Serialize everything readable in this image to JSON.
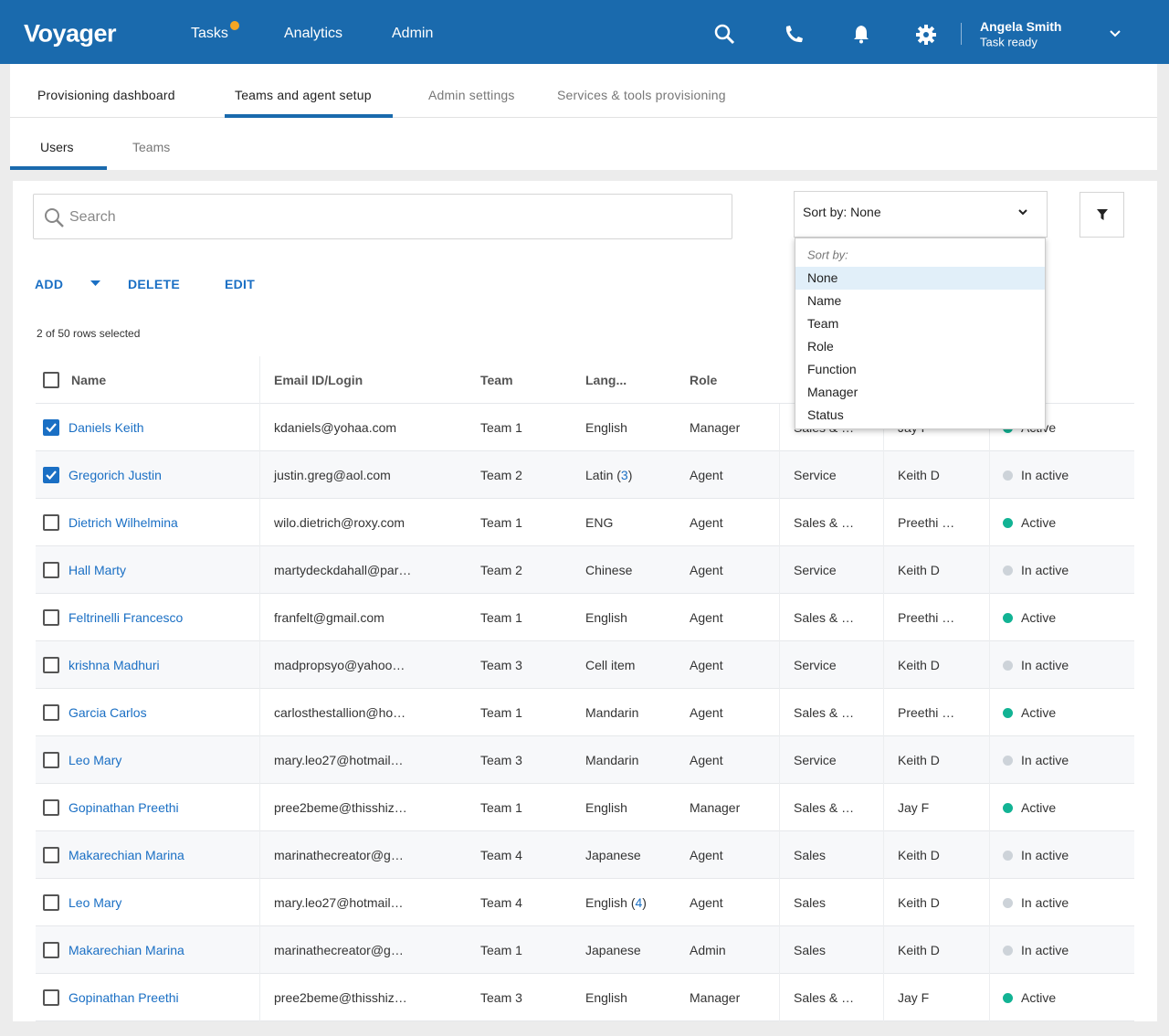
{
  "header": {
    "brand": "Voyager",
    "nav": [
      "Tasks",
      "Analytics",
      "Admin"
    ],
    "user_name": "Angela Smith",
    "user_status": "Task ready"
  },
  "tabs": {
    "items": [
      "Provisioning dashboard",
      "Teams and agent setup",
      "Admin settings",
      "Services & tools provisioning"
    ],
    "active": 1
  },
  "subtabs": {
    "items": [
      "Users",
      "Teams"
    ],
    "active": 0
  },
  "search": {
    "placeholder": "Search"
  },
  "sort": {
    "label": "Sort by: None",
    "menu_heading": "Sort by:",
    "options": [
      "None",
      "Name",
      "Team",
      "Role",
      "Function",
      "Manager",
      "Status"
    ],
    "selected": 0
  },
  "actions": [
    "ADD",
    "DELETE",
    "EDIT"
  ],
  "selection": "2 of 50 rows selected",
  "table": {
    "headers": [
      "Name",
      "Email ID/Login",
      "Team",
      "Lang...",
      "Role"
    ],
    "rows": [
      {
        "checked": true,
        "name": "Daniels Keith",
        "email": "kdaniels@yohaa.com",
        "team": "Team 1",
        "lang": "English",
        "role": "Manager",
        "function": "Sales & …",
        "manager": "Jay F",
        "status": "Active",
        "dot": "#12b394"
      },
      {
        "checked": true,
        "name": "Gregorich Justin",
        "email": "justin.greg@aol.com",
        "team": "Team 2",
        "lang": "Latin",
        "lang_count": 3,
        "role": "Agent",
        "function": "Service",
        "manager": "Keith D",
        "status": "In active",
        "dot": "#cdd3d9"
      },
      {
        "checked": false,
        "name": "Dietrich Wilhelmina",
        "email": "wilo.dietrich@roxy.com",
        "team": "Team 1",
        "lang": "ENG",
        "role": "Agent",
        "function": "Sales & …",
        "manager": "Preethi …",
        "status": "Active",
        "dot": "#12b394"
      },
      {
        "checked": false,
        "name": "Hall Marty",
        "email": "martydeckdahall@par…",
        "team": "Team 2",
        "lang": "Chinese",
        "role": "Agent",
        "function": "Service",
        "manager": "Keith D",
        "status": "In active",
        "dot": "#cdd3d9"
      },
      {
        "checked": false,
        "name": "Feltrinelli Francesco",
        "email": "franfelt@gmail.com",
        "team": "Team 1",
        "lang": "English",
        "role": "Agent",
        "function": "Sales & …",
        "manager": "Preethi …",
        "status": "Active",
        "dot": "#12b394"
      },
      {
        "checked": false,
        "name": "krishna Madhuri",
        "email": "madpropsyo@yahoo…",
        "team": "Team 3",
        "lang": "Cell item",
        "role": "Agent",
        "function": "Service",
        "manager": "Keith D",
        "status": "In active",
        "dot": "#cdd3d9"
      },
      {
        "checked": false,
        "name": "Garcia Carlos",
        "email": "carlosthestallion@ho…",
        "team": "Team 1",
        "lang": "Mandarin",
        "role": "Agent",
        "function": "Sales & …",
        "manager": "Preethi …",
        "status": "Active",
        "dot": "#12b394"
      },
      {
        "checked": false,
        "name": "Leo Mary",
        "email": "mary.leo27@hotmail…",
        "team": "Team 3",
        "lang": "Mandarin",
        "role": "Agent",
        "function": "Service",
        "manager": "Keith D",
        "status": "In active",
        "dot": "#cdd3d9"
      },
      {
        "checked": false,
        "name": "Gopinathan Preethi",
        "email": "pree2beme@thisshiz…",
        "team": "Team 1",
        "lang": "English",
        "role": "Manager",
        "function": "Sales & …",
        "manager": "Jay F",
        "status": "Active",
        "dot": "#12b394"
      },
      {
        "checked": false,
        "name": "Makarechian Marina",
        "email": "marinathecreator@g…",
        "team": "Team 4",
        "lang": "Japanese",
        "role": "Agent",
        "function": "Sales",
        "manager": "Keith D",
        "status": "In active",
        "dot": "#cdd3d9"
      },
      {
        "checked": false,
        "name": "Leo Mary",
        "email": "mary.leo27@hotmail…",
        "team": "Team 4",
        "lang": "English",
        "lang_count": 4,
        "role": "Agent",
        "function": "Sales",
        "manager": "Keith D",
        "status": "In active",
        "dot": "#cdd3d9"
      },
      {
        "checked": false,
        "name": "Makarechian Marina",
        "email": "marinathecreator@g…",
        "team": "Team 1",
        "lang": "Japanese",
        "role": "Admin",
        "function": "Sales",
        "manager": "Keith D",
        "status": "In active",
        "dot": "#cdd3d9"
      },
      {
        "checked": false,
        "name": "Gopinathan Preethi",
        "email": "pree2beme@thisshiz…",
        "team": "Team 3",
        "lang": "English",
        "role": "Manager",
        "function": "Sales & …",
        "manager": "Jay F",
        "status": "Active",
        "dot": "#12b394"
      }
    ]
  }
}
